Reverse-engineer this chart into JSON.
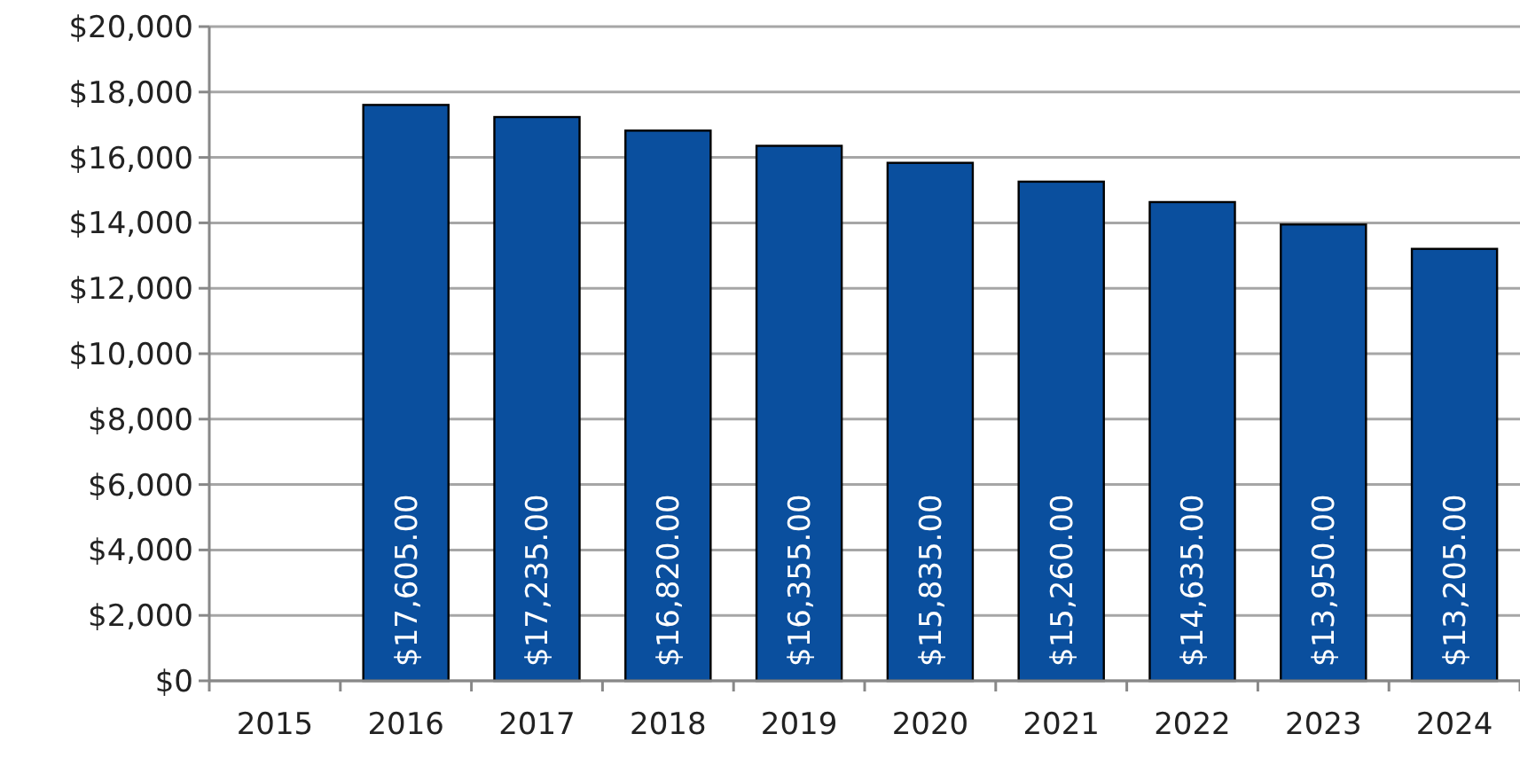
{
  "chart_data": {
    "type": "bar",
    "categories": [
      "2015",
      "2016",
      "2017",
      "2018",
      "2019",
      "2020",
      "2021",
      "2022",
      "2023",
      "2024"
    ],
    "values": [
      null,
      17605,
      17235,
      16820,
      16355,
      15835,
      15260,
      14635,
      13950,
      13205
    ],
    "value_labels": [
      null,
      "$17,605.00",
      "$17,235.00",
      "$16,820.00",
      "$16,355.00",
      "$15,835.00",
      "$15,260.00",
      "$14,635.00",
      "$13,950.00",
      "$13,205.00"
    ],
    "color": "#0a4f9e",
    "ylim": [
      0,
      20000
    ],
    "yticks": [
      {
        "value": 0,
        "label": "$0"
      },
      {
        "value": 2000,
        "label": "$2,000"
      },
      {
        "value": 4000,
        "label": "$4,000"
      },
      {
        "value": 6000,
        "label": "$6,000"
      },
      {
        "value": 8000,
        "label": "$8,000"
      },
      {
        "value": 10000,
        "label": "$10,000"
      },
      {
        "value": 12000,
        "label": "$12,000"
      },
      {
        "value": 14000,
        "label": "$14,000"
      },
      {
        "value": 16000,
        "label": "$16,000"
      },
      {
        "value": 18000,
        "label": "$18,000"
      },
      {
        "value": 20000,
        "label": "$20,000"
      }
    ],
    "grid": "y"
  }
}
